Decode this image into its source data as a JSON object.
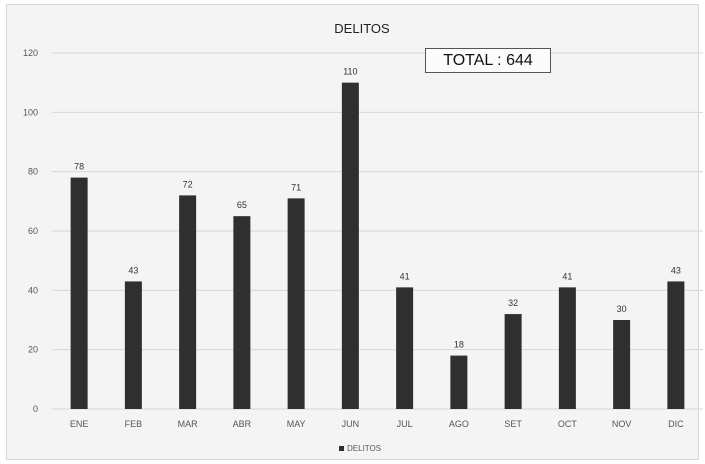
{
  "chart_data": {
    "type": "bar",
    "title": "DELITOS",
    "categories": [
      "ENE",
      "FEB",
      "MAR",
      "ABR",
      "MAY",
      "JUN",
      "JUL",
      "AGO",
      "SET",
      "OCT",
      "NOV",
      "DIC"
    ],
    "series": [
      {
        "name": "DELITOS",
        "values": [
          78,
          43,
          72,
          65,
          71,
          110,
          41,
          18,
          32,
          41,
          30,
          43
        ]
      }
    ],
    "ylim": [
      0,
      120
    ],
    "yticks": [
      0,
      20,
      40,
      60,
      80,
      100,
      120
    ],
    "grid": true,
    "legend_position": "bottom-center",
    "annotation": "TOTAL : 644",
    "colors": {
      "bar": "#2f2f2f",
      "grid": "#d6d6d6",
      "background": "#f4f4f4"
    }
  }
}
